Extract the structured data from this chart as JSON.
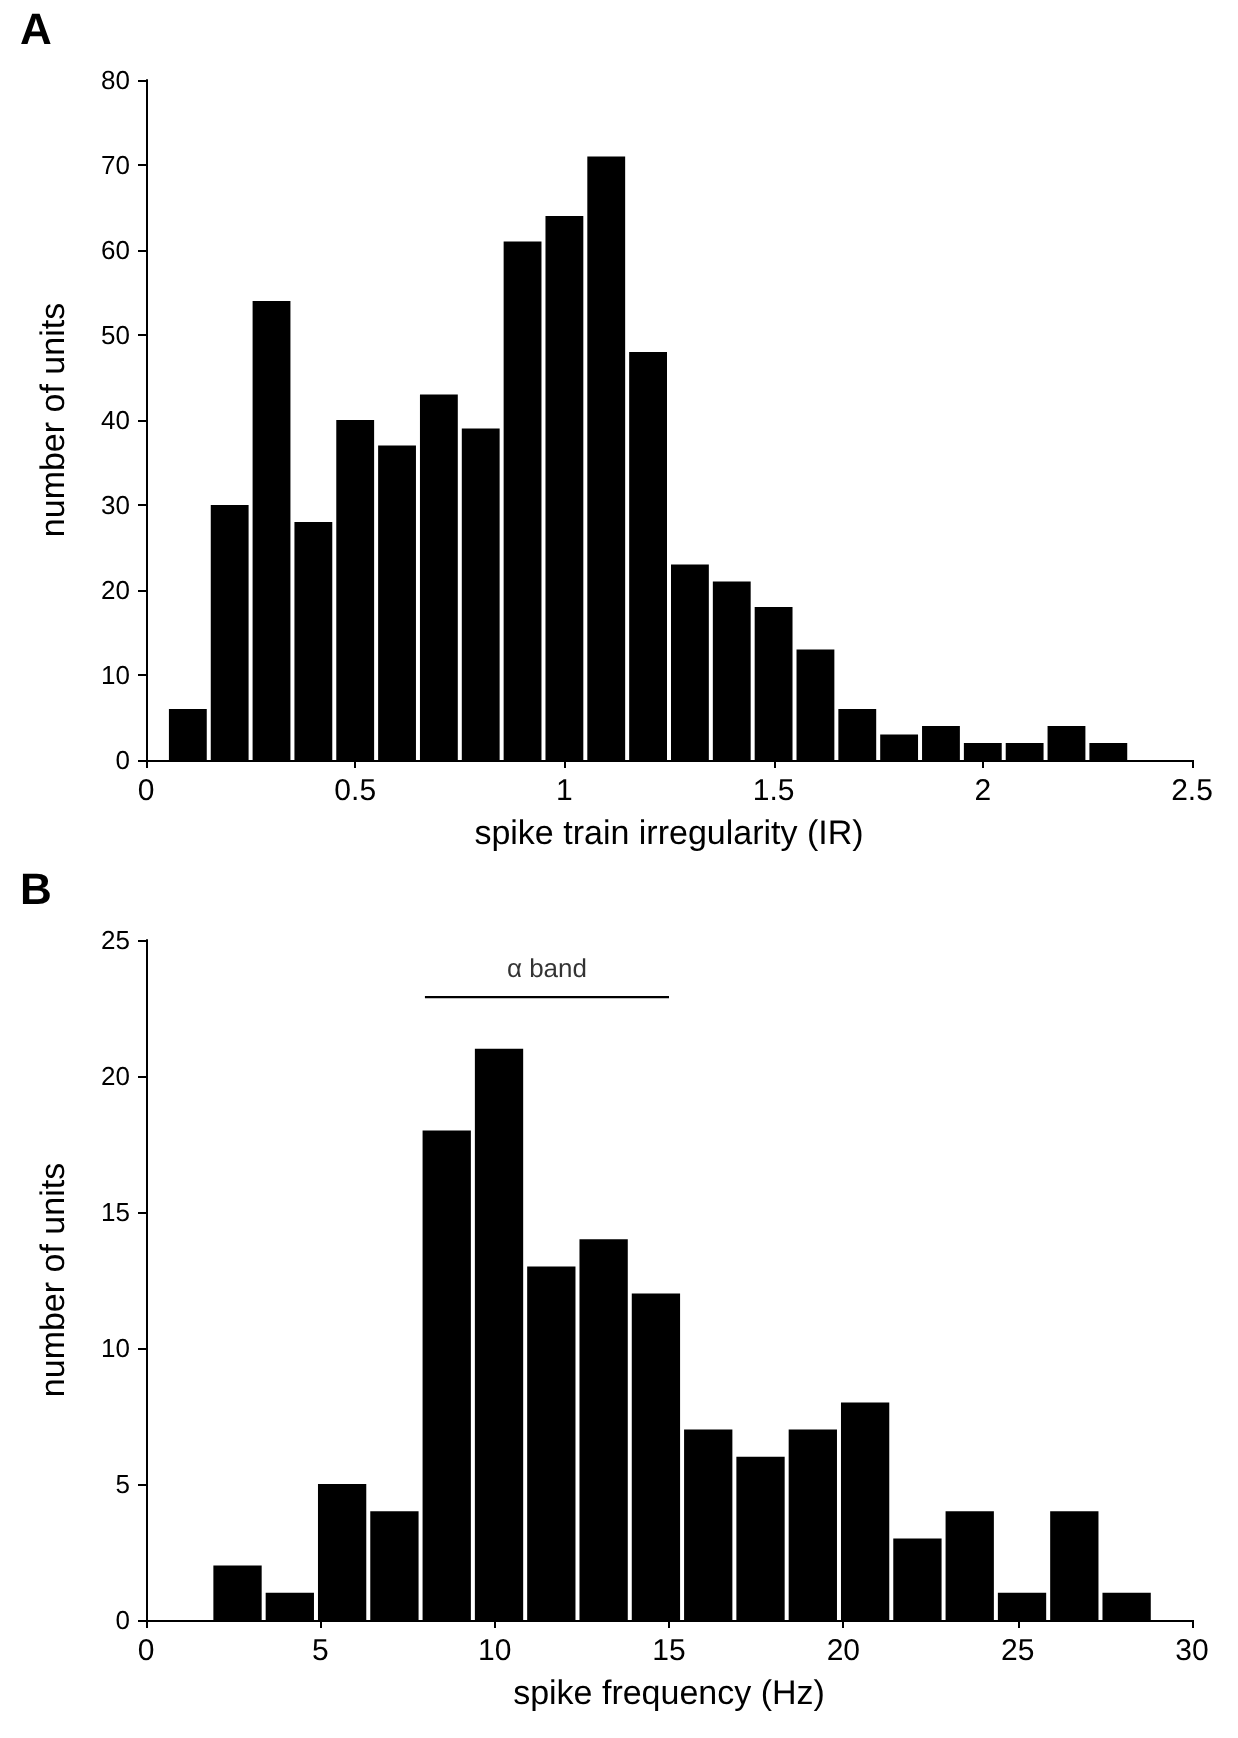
{
  "chart_data": [
    {
      "type": "histogram",
      "title": "A",
      "xlabel": "spike train irregularity (IR)",
      "ylabel": "number of units",
      "bins": [
        0.05,
        0.15,
        0.25,
        0.35,
        0.45,
        0.55,
        0.65,
        0.75,
        0.85,
        0.95,
        1.05,
        1.15,
        1.25,
        1.35,
        1.45,
        1.55,
        1.65,
        1.75,
        1.85,
        1.95,
        2.05,
        2.15,
        2.25,
        2.35,
        2.45
      ],
      "series": [
        {
          "color": "#000000",
          "values": [
            6,
            30,
            54,
            28,
            40,
            37,
            43,
            39,
            61,
            64,
            71,
            48,
            23,
            21,
            18,
            13,
            6,
            3,
            4,
            2,
            2,
            4,
            2,
            0
          ]
        }
      ],
      "xlim": [
        0,
        2.5
      ],
      "xticks": [
        0,
        0.5,
        1,
        1.5,
        2,
        2.5
      ],
      "ylim": [
        0,
        80
      ],
      "yticks": [
        0,
        10,
        20,
        30,
        40,
        50,
        60,
        70,
        80
      ],
      "grid": false
    },
    {
      "type": "histogram",
      "title": "B",
      "xlabel": "spike frequency (Hz)",
      "ylabel": "number of units",
      "bins": [
        1.875,
        3.375,
        4.875,
        6.375,
        7.875,
        9.375,
        10.875,
        12.375,
        13.875,
        15.375,
        16.875,
        18.375,
        19.875,
        21.375,
        22.875,
        24.375,
        25.875,
        27.375,
        28.875
      ],
      "series": [
        {
          "color": "#000000",
          "values": [
            2,
            1,
            5,
            4,
            18,
            21,
            13,
            14,
            12,
            7,
            6,
            7,
            8,
            3,
            4,
            1,
            4,
            1
          ]
        },
        {
          "type": "line",
          "color": "#000000",
          "x": [
            8,
            15
          ],
          "values": [
            22.9,
            22.9
          ]
        }
      ],
      "xlim": [
        0,
        30
      ],
      "xticks": [
        0,
        5,
        10,
        15,
        20,
        25,
        30
      ],
      "ylim": [
        0,
        25
      ],
      "yticks": [
        0,
        5,
        10,
        15,
        20,
        25
      ],
      "grid": false,
      "marker": "none",
      "annotations": [
        {
          "text": "α band",
          "x": 11.5,
          "y": 22.9
        }
      ]
    }
  ]
}
